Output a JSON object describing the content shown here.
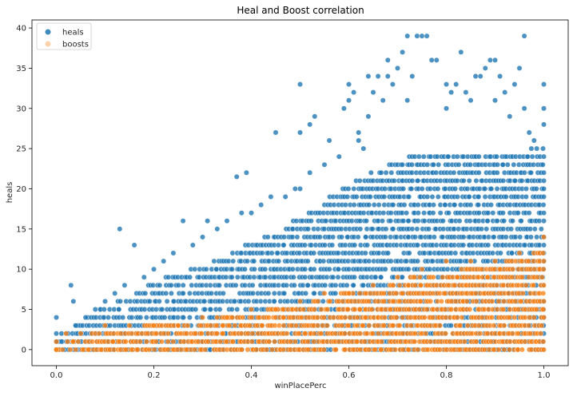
{
  "chart_data": {
    "type": "scatter",
    "title": "Heal and Boost correlation",
    "xlabel": "winPlacePerc",
    "ylabel": "heals",
    "xlim": [
      -0.05,
      1.05
    ],
    "ylim": [
      -2,
      41
    ],
    "xticks": [
      0.0,
      0.2,
      0.4,
      0.6,
      0.8,
      1.0
    ],
    "xtick_labels": [
      "0.0",
      "0.2",
      "0.4",
      "0.6",
      "0.8",
      "1.0"
    ],
    "yticks": [
      0,
      5,
      10,
      15,
      20,
      25,
      30,
      35,
      40
    ],
    "ytick_labels": [
      "0",
      "5",
      "10",
      "15",
      "20",
      "25",
      "30",
      "35",
      "40"
    ],
    "grid": false,
    "legend_position": "top-left",
    "series": [
      {
        "name": "heals",
        "color": "#1f77b4",
        "points": [
          [
            0.0,
            4
          ],
          [
            0.0,
            2
          ],
          [
            0.0,
            1
          ],
          [
            0.03,
            8
          ],
          [
            0.035,
            6
          ],
          [
            0.04,
            3
          ],
          [
            0.05,
            2
          ],
          [
            0.06,
            4
          ],
          [
            0.08,
            5
          ],
          [
            0.1,
            6
          ],
          [
            0.12,
            7
          ],
          [
            0.13,
            15
          ],
          [
            0.14,
            8
          ],
          [
            0.16,
            13
          ],
          [
            0.18,
            9
          ],
          [
            0.2,
            10
          ],
          [
            0.22,
            11
          ],
          [
            0.24,
            12
          ],
          [
            0.26,
            16
          ],
          [
            0.28,
            13
          ],
          [
            0.3,
            14
          ],
          [
            0.31,
            16
          ],
          [
            0.33,
            15
          ],
          [
            0.35,
            16
          ],
          [
            0.37,
            21.5
          ],
          [
            0.38,
            17
          ],
          [
            0.39,
            22
          ],
          [
            0.4,
            17
          ],
          [
            0.42,
            18
          ],
          [
            0.44,
            19
          ],
          [
            0.45,
            27
          ],
          [
            0.47,
            19
          ],
          [
            0.49,
            20
          ],
          [
            0.5,
            20
          ],
          [
            0.5,
            27
          ],
          [
            0.5,
            33
          ],
          [
            0.52,
            22
          ],
          [
            0.52,
            28
          ],
          [
            0.53,
            29
          ],
          [
            0.55,
            23
          ],
          [
            0.56,
            26
          ],
          [
            0.58,
            24
          ],
          [
            0.59,
            30
          ],
          [
            0.6,
            31
          ],
          [
            0.6,
            33
          ],
          [
            0.61,
            32
          ],
          [
            0.62,
            26
          ],
          [
            0.62,
            27
          ],
          [
            0.63,
            25
          ],
          [
            0.64,
            29
          ],
          [
            0.64,
            34
          ],
          [
            0.65,
            32
          ],
          [
            0.66,
            34
          ],
          [
            0.67,
            31
          ],
          [
            0.68,
            34
          ],
          [
            0.68,
            36
          ],
          [
            0.69,
            33
          ],
          [
            0.7,
            35
          ],
          [
            0.71,
            37
          ],
          [
            0.72,
            31
          ],
          [
            0.72,
            39
          ],
          [
            0.73,
            34
          ],
          [
            0.74,
            39
          ],
          [
            0.75,
            39
          ],
          [
            0.76,
            39
          ],
          [
            0.77,
            36
          ],
          [
            0.78,
            36
          ],
          [
            0.8,
            30
          ],
          [
            0.8,
            33
          ],
          [
            0.81,
            32
          ],
          [
            0.82,
            33
          ],
          [
            0.83,
            37
          ],
          [
            0.84,
            32
          ],
          [
            0.85,
            31
          ],
          [
            0.86,
            34
          ],
          [
            0.87,
            34
          ],
          [
            0.88,
            35
          ],
          [
            0.89,
            36
          ],
          [
            0.9,
            36
          ],
          [
            0.9,
            31
          ],
          [
            0.91,
            34
          ],
          [
            0.92,
            32
          ],
          [
            0.93,
            29
          ],
          [
            0.94,
            33
          ],
          [
            0.95,
            35
          ],
          [
            0.96,
            39
          ],
          [
            0.96,
            30
          ],
          [
            0.97,
            27
          ],
          [
            0.98,
            26
          ],
          [
            1.0,
            33
          ],
          [
            1.0,
            30
          ],
          [
            1.0,
            28
          ]
        ],
        "envelope": [
          [
            0.0,
            1
          ],
          [
            0.05,
            3
          ],
          [
            0.1,
            5
          ],
          [
            0.15,
            6
          ],
          [
            0.2,
            8
          ],
          [
            0.25,
            9
          ],
          [
            0.3,
            10
          ],
          [
            0.35,
            11
          ],
          [
            0.4,
            13
          ],
          [
            0.45,
            14
          ],
          [
            0.5,
            16
          ],
          [
            0.55,
            18
          ],
          [
            0.6,
            20
          ],
          [
            0.65,
            22
          ],
          [
            0.7,
            23
          ],
          [
            0.75,
            24
          ],
          [
            0.8,
            24
          ],
          [
            0.85,
            24
          ],
          [
            0.9,
            24
          ],
          [
            0.95,
            24
          ],
          [
            1.0,
            25
          ]
        ]
      },
      {
        "name": "boosts",
        "color": "#ff7f0e",
        "points": [
          [
            0.0,
            0
          ],
          [
            0.0,
            1
          ],
          [
            0.02,
            2
          ],
          [
            0.05,
            2
          ],
          [
            0.1,
            3
          ],
          [
            0.15,
            3
          ],
          [
            0.2,
            3
          ],
          [
            0.25,
            3
          ],
          [
            0.3,
            4
          ],
          [
            0.35,
            4
          ],
          [
            0.4,
            5
          ],
          [
            0.45,
            5
          ],
          [
            0.5,
            6
          ],
          [
            0.55,
            7
          ],
          [
            0.6,
            7
          ],
          [
            0.65,
            8
          ],
          [
            0.7,
            9
          ],
          [
            0.75,
            10
          ],
          [
            0.8,
            11
          ],
          [
            0.85,
            11
          ],
          [
            0.9,
            11
          ],
          [
            0.95,
            12
          ],
          [
            1.0,
            14
          ]
        ],
        "envelope": [
          [
            0.0,
            0
          ],
          [
            0.05,
            1
          ],
          [
            0.1,
            2
          ],
          [
            0.15,
            2
          ],
          [
            0.2,
            3
          ],
          [
            0.25,
            3
          ],
          [
            0.3,
            3
          ],
          [
            0.35,
            4
          ],
          [
            0.4,
            4
          ],
          [
            0.45,
            5
          ],
          [
            0.5,
            5
          ],
          [
            0.55,
            6
          ],
          [
            0.6,
            7
          ],
          [
            0.65,
            7
          ],
          [
            0.7,
            8
          ],
          [
            0.75,
            9
          ],
          [
            0.8,
            9
          ],
          [
            0.85,
            10
          ],
          [
            0.9,
            10
          ],
          [
            0.95,
            11
          ],
          [
            1.0,
            12
          ]
        ]
      }
    ]
  }
}
